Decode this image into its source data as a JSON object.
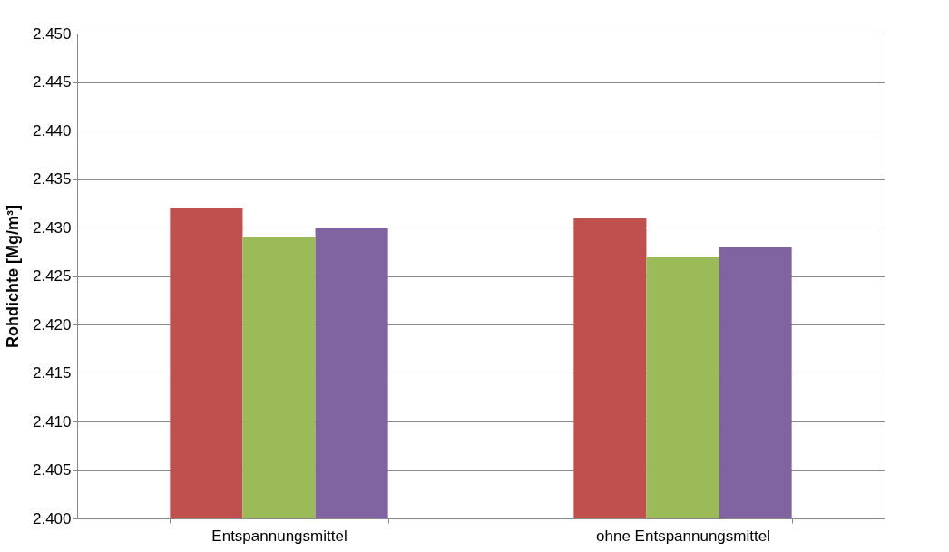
{
  "chart_data": {
    "type": "bar",
    "ylabel": "Rohdichte [Mg/m³]",
    "categories": [
      "Entspannungsmittel",
      "ohne Entspannungsmittel"
    ],
    "series": [
      {
        "color": "#c0504d",
        "values": [
          2.432,
          2.431
        ]
      },
      {
        "color": "#9bbb59",
        "values": [
          2.429,
          2.427
        ]
      },
      {
        "color": "#8064a2",
        "values": [
          2.43,
          2.428
        ]
      }
    ],
    "ylim": [
      2.4,
      2.45
    ],
    "yticks": [
      {
        "value": 2.4,
        "label": "2.400"
      },
      {
        "value": 2.405,
        "label": "2.405"
      },
      {
        "value": 2.41,
        "label": "2.410"
      },
      {
        "value": 2.415,
        "label": "2.415"
      },
      {
        "value": 2.42,
        "label": "2.420"
      },
      {
        "value": 2.425,
        "label": "2.425"
      },
      {
        "value": 2.43,
        "label": "2.430"
      },
      {
        "value": 2.435,
        "label": "2.435"
      },
      {
        "value": 2.44,
        "label": "2.440"
      },
      {
        "value": 2.445,
        "label": "2.445"
      },
      {
        "value": 2.45,
        "label": "2.450"
      }
    ],
    "grid": "y",
    "legend": false
  }
}
